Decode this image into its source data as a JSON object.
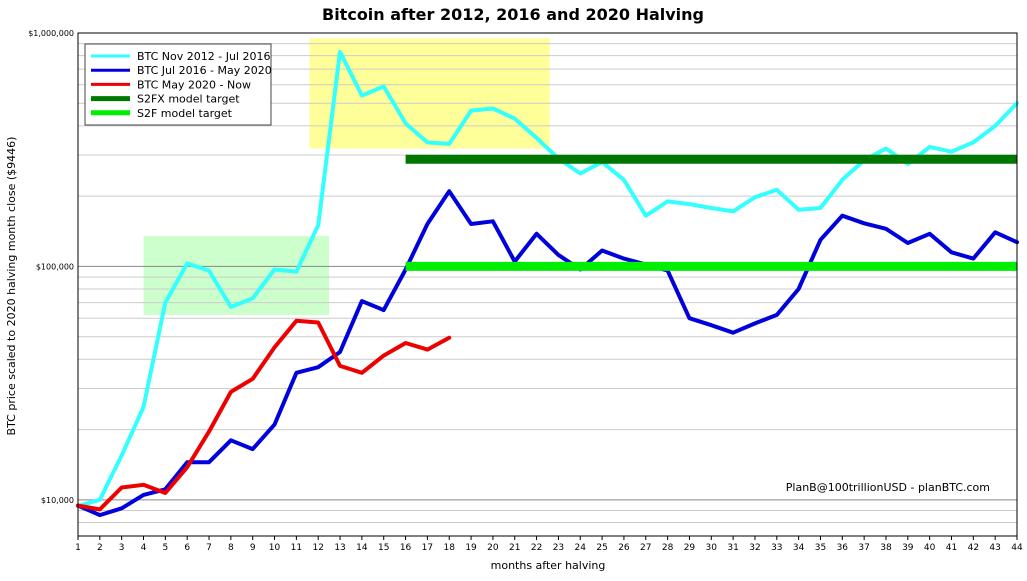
{
  "chart_data": {
    "type": "line",
    "title": "Bitcoin after 2012, 2016 and 2020 Halving",
    "xlabel": "months after halving",
    "ylabel": "BTC price scaled to 2020 halving month close ($9446)",
    "xlim": [
      1,
      44
    ],
    "ylim": [
      7000,
      1000000
    ],
    "y_scale": "log",
    "x_ticks": [
      1,
      2,
      3,
      4,
      5,
      6,
      7,
      8,
      9,
      10,
      11,
      12,
      13,
      14,
      15,
      16,
      17,
      18,
      19,
      20,
      21,
      22,
      23,
      24,
      25,
      26,
      27,
      28,
      29,
      30,
      31,
      32,
      33,
      34,
      35,
      36,
      37,
      38,
      39,
      40,
      41,
      42,
      43,
      44
    ],
    "y_ticks": [
      {
        "value": 10000,
        "label": "$10,000"
      },
      {
        "value": 100000,
        "label": "$100,000"
      },
      {
        "value": 1000000,
        "label": "$1,000,000"
      }
    ],
    "grid": true,
    "legend_position": "top-left",
    "credit": "PlanB@100trillionUSD  -  planBTC.com",
    "highlight_boxes": [
      {
        "x": [
          4,
          12.5
        ],
        "y": [
          62000,
          135000
        ],
        "color": "#ccffcc"
      },
      {
        "x": [
          11.6,
          22.6
        ],
        "y": [
          320000,
          950000
        ],
        "color": "#ffff99"
      }
    ],
    "series": [
      {
        "name": "BTC Nov 2012 - Jul 2016",
        "color": "#33ffff",
        "x": [
          1,
          2,
          3,
          4,
          5,
          6,
          7,
          8,
          9,
          10,
          11,
          12,
          13,
          14,
          15,
          16,
          17,
          18,
          19,
          20,
          21,
          22,
          23,
          24,
          25,
          26,
          27,
          28,
          29,
          30,
          31,
          32,
          33,
          34,
          35,
          36,
          37,
          38,
          39,
          40,
          41,
          42,
          43,
          44
        ],
        "values": [
          9400,
          10000,
          15500,
          25000,
          70000,
          103000,
          96000,
          67000,
          73000,
          97000,
          95000,
          150000,
          830000,
          540000,
          590000,
          410000,
          340000,
          335000,
          465000,
          475000,
          430000,
          355000,
          290000,
          250000,
          280000,
          235000,
          165000,
          190000,
          185000,
          178000,
          172000,
          198000,
          213000,
          175000,
          178000,
          235000,
          285000,
          320000,
          275000,
          325000,
          310000,
          340000,
          400000,
          500000
        ]
      },
      {
        "name": "BTC Jul 2016 - May 2020",
        "color": "#0000dd",
        "x": [
          1,
          2,
          3,
          4,
          5,
          6,
          7,
          8,
          9,
          10,
          11,
          12,
          13,
          14,
          15,
          16,
          17,
          18,
          19,
          20,
          21,
          22,
          23,
          24,
          25,
          26,
          27,
          28,
          29,
          30,
          31,
          32,
          33,
          34,
          35,
          36,
          37,
          38,
          39,
          40,
          41,
          42,
          43,
          44
        ],
        "values": [
          9446,
          8600,
          9200,
          10500,
          11100,
          14500,
          14500,
          18000,
          16500,
          21000,
          35000,
          37000,
          43000,
          71000,
          65000,
          97000,
          152000,
          210000,
          152000,
          156000,
          105000,
          138000,
          112000,
          97000,
          117000,
          108000,
          102000,
          96000,
          60000,
          56000,
          52000,
          57000,
          62000,
          80000,
          130000,
          165000,
          153000,
          145000,
          126000,
          138000,
          115000,
          108000,
          140000,
          127000
        ]
      },
      {
        "name": "BTC May 2020 - Now",
        "color": "#ee0000",
        "x": [
          1,
          2,
          3,
          4,
          5,
          6,
          7,
          8,
          9,
          10,
          11,
          12,
          13,
          14,
          15,
          16,
          17,
          18
        ],
        "values": [
          9446,
          9100,
          11300,
          11600,
          10700,
          13800,
          19600,
          29000,
          33000,
          45000,
          58500,
          57500,
          37500,
          35000,
          41500,
          47000,
          44000,
          49500
        ]
      },
      {
        "name": "S2FX model target",
        "color": "#007700",
        "x": [
          16,
          44
        ],
        "values": [
          288000,
          288000
        ]
      },
      {
        "name": "S2F model target",
        "color": "#00ee00",
        "x": [
          16,
          44
        ],
        "values": [
          100000,
          100000
        ]
      }
    ]
  }
}
